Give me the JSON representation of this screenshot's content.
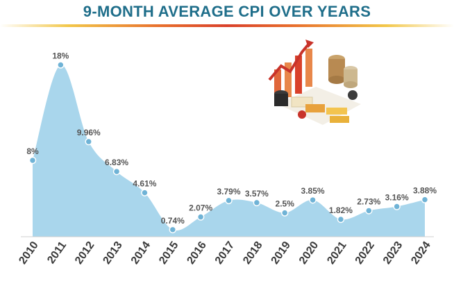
{
  "chart_data": {
    "type": "area",
    "title": "9-MONTH AVERAGE CPI OVER YEARS",
    "xlabel": "",
    "ylabel": "",
    "ylim": [
      0,
      20
    ],
    "grid": false,
    "categories": [
      "2010",
      "2011",
      "2012",
      "2013",
      "2014",
      "2015",
      "2016",
      "2017",
      "2018",
      "2019",
      "2020",
      "2021",
      "2022",
      "2023",
      "2024"
    ],
    "values": [
      8,
      18,
      9.96,
      6.83,
      4.61,
      0.74,
      2.07,
      3.79,
      3.57,
      2.5,
      3.85,
      1.82,
      2.73,
      3.16,
      3.88
    ],
    "data_labels": [
      "8%",
      "18%",
      "9.96%",
      "6.83%",
      "4.61%",
      "0.74%",
      "2.07%",
      "3.79%",
      "3.57%",
      "2.5%",
      "3.85%",
      "1.82%",
      "2.73%",
      "3.16%",
      "3.88%"
    ],
    "colors": {
      "fill": "#a9d6ec",
      "marker": "#6fb3d6",
      "title": "#1f6e8a",
      "labels": "#555555"
    }
  }
}
